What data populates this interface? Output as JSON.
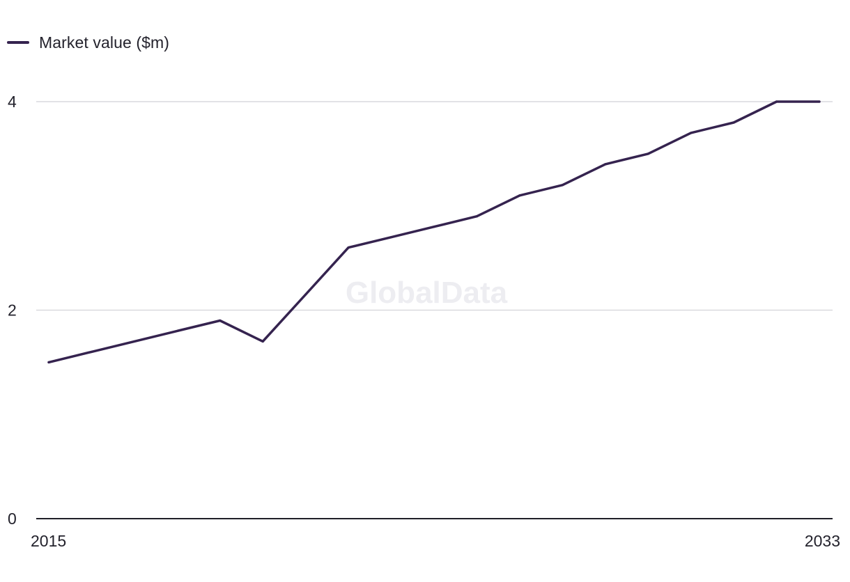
{
  "legend": {
    "label": "Market value ($m)"
  },
  "watermark": "GlobalData",
  "colors": {
    "line": "#35234f",
    "grid": "#d9d9de",
    "axis": "#1f1f28"
  },
  "chart_data": {
    "type": "line",
    "x_tick_labels": [
      "2015",
      "2033"
    ],
    "y_ticks": [
      0,
      2,
      4
    ],
    "ylim": [
      0,
      4
    ],
    "xlim": [
      2015,
      2033
    ],
    "grid": "horizontal",
    "legend_position": "top-left",
    "series": [
      {
        "name": "Market value ($m)",
        "x": [
          2015,
          2016,
          2017,
          2018,
          2019,
          2020,
          2021,
          2022,
          2023,
          2024,
          2025,
          2026,
          2027,
          2028,
          2029,
          2030,
          2031,
          2032,
          2033
        ],
        "values": [
          1.5,
          1.6,
          1.7,
          1.8,
          1.9,
          1.7,
          2.15,
          2.6,
          2.7,
          2.8,
          2.9,
          3.1,
          3.2,
          3.4,
          3.5,
          3.7,
          3.8,
          4.0,
          4.0
        ]
      }
    ]
  }
}
